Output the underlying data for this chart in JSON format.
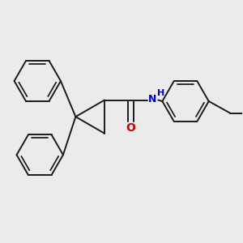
{
  "bg_color": "#ebebeb",
  "bond_color": "#1a1a1a",
  "bond_width": 1.4,
  "atom_colors": {
    "O": "#cc0000",
    "N": "#0000cc",
    "H": "#0000cc"
  },
  "font_size_NH": 8,
  "font_size_O": 9,
  "fig_size": [
    3.0,
    3.0
  ],
  "dpi": 100
}
